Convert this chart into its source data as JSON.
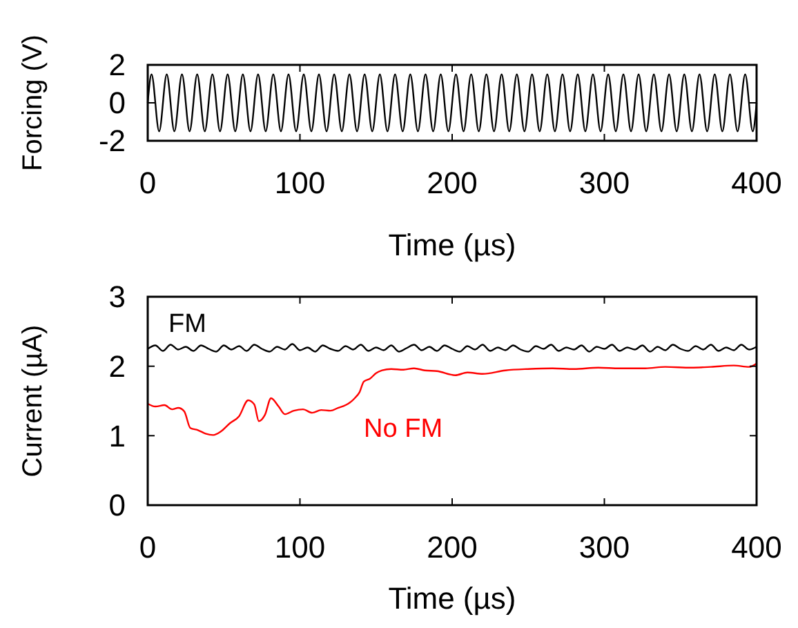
{
  "chart_data": [
    {
      "type": "line",
      "xlabel": "Time (µs)",
      "ylabel": "Forcing (V)",
      "xlim": [
        0,
        400
      ],
      "ylim": [
        -2,
        2
      ],
      "xticks": [
        0,
        100,
        200,
        300,
        400
      ],
      "yticks": [
        -2,
        0,
        2
      ],
      "grid": false,
      "series": [
        {
          "color": "#000000",
          "x": [
            0,
            2.5,
            7.5,
            12.5,
            17.5,
            22.5,
            27.5,
            32.5,
            37.5,
            42.5,
            47.5,
            52.5,
            57.5,
            62.5,
            67.5,
            72.5,
            77.5,
            82.5,
            87.5,
            92.5,
            97.5,
            102.5,
            107.5,
            112.5,
            117.5,
            122.5,
            127.5,
            132.5,
            137.5,
            142.5,
            147.5,
            152.5,
            157.5,
            162.5,
            167.5,
            172.5,
            177.5,
            182.5,
            187.5,
            192.5,
            197.5,
            202.5,
            207.5,
            212.5,
            217.5,
            222.5,
            227.5,
            232.5,
            237.5,
            242.5,
            247.5,
            252.5,
            257.5,
            262.5,
            267.5,
            272.5,
            277.5,
            282.5,
            287.5,
            292.5,
            297.5,
            302.5,
            307.5,
            312.5,
            317.5,
            322.5,
            327.5,
            332.5,
            337.5,
            342.5,
            347.5,
            352.5,
            357.5,
            362.5,
            367.5,
            372.5,
            377.5,
            382.5,
            387.5,
            392.5,
            397.5,
            400
          ],
          "values": [
            0,
            1.5,
            -1.5,
            1.5,
            -1.5,
            1.5,
            -1.5,
            1.5,
            -1.5,
            1.5,
            -1.5,
            1.5,
            -1.5,
            1.5,
            -1.5,
            1.5,
            -1.5,
            1.5,
            -1.5,
            1.5,
            -1.5,
            1.5,
            -1.5,
            1.5,
            -1.5,
            1.5,
            -1.5,
            1.5,
            -1.5,
            1.5,
            -1.5,
            1.5,
            -1.5,
            1.5,
            -1.5,
            1.5,
            -1.5,
            1.5,
            -1.5,
            1.5,
            -1.5,
            1.5,
            -1.5,
            1.5,
            -1.5,
            1.5,
            -1.5,
            1.5,
            -1.5,
            1.5,
            -1.5,
            1.5,
            -1.5,
            1.5,
            -1.5,
            1.5,
            -1.5,
            1.5,
            -1.5,
            1.5,
            -1.5,
            1.5,
            -1.5,
            1.5,
            -1.5,
            1.5,
            -1.5,
            1.5,
            -1.5,
            1.5,
            -1.5,
            1.5,
            -1.5,
            1.5,
            -1.5,
            1.5,
            -1.5,
            1.5,
            -1.5,
            1.5,
            -1.5,
            0
          ]
        }
      ]
    },
    {
      "type": "line",
      "xlabel": "Time (µs)",
      "ylabel": "Current (µA)",
      "xlim": [
        0,
        400
      ],
      "ylim": [
        0,
        3
      ],
      "xticks": [
        0,
        100,
        200,
        300,
        400
      ],
      "yticks": [
        0,
        1,
        2,
        3
      ],
      "grid": false,
      "series": [
        {
          "name": "FM",
          "color": "#000000",
          "x": [
            0,
            5,
            10,
            15,
            20,
            25,
            30,
            35,
            40,
            45,
            50,
            55,
            60,
            65,
            70,
            75,
            80,
            85,
            90,
            95,
            100,
            105,
            110,
            115,
            120,
            125,
            130,
            135,
            140,
            145,
            150,
            155,
            160,
            165,
            170,
            175,
            180,
            185,
            190,
            195,
            200,
            205,
            210,
            215,
            220,
            225,
            230,
            235,
            240,
            245,
            250,
            255,
            260,
            265,
            270,
            275,
            280,
            285,
            290,
            295,
            300,
            305,
            310,
            315,
            320,
            325,
            330,
            335,
            340,
            345,
            350,
            355,
            360,
            365,
            370,
            375,
            380,
            385,
            390,
            395,
            400
          ],
          "values": [
            2.25,
            2.3,
            2.22,
            2.31,
            2.24,
            2.28,
            2.22,
            2.3,
            2.25,
            2.21,
            2.3,
            2.24,
            2.29,
            2.22,
            2.31,
            2.25,
            2.21,
            2.28,
            2.24,
            2.32,
            2.23,
            2.27,
            2.21,
            2.3,
            2.25,
            2.22,
            2.29,
            2.24,
            2.31,
            2.22,
            2.27,
            2.23,
            2.3,
            2.21,
            2.26,
            2.31,
            2.23,
            2.28,
            2.22,
            2.3,
            2.25,
            2.21,
            2.29,
            2.24,
            2.31,
            2.22,
            2.27,
            2.23,
            2.3,
            2.24,
            2.21,
            2.29,
            2.25,
            2.31,
            2.22,
            2.27,
            2.24,
            2.3,
            2.21,
            2.28,
            2.25,
            2.31,
            2.22,
            2.27,
            2.24,
            2.3,
            2.21,
            2.28,
            2.23,
            2.31,
            2.25,
            2.22,
            2.29,
            2.24,
            2.31,
            2.22,
            2.27,
            2.23,
            2.31,
            2.24,
            2.28
          ]
        },
        {
          "name": "No FM",
          "color": "#ff0000",
          "x": [
            0,
            5,
            11,
            16,
            20,
            24,
            28,
            33,
            38,
            43,
            48,
            54,
            60,
            66,
            70,
            73,
            77,
            81,
            86,
            90,
            96,
            102,
            108,
            114,
            120,
            125,
            130,
            133,
            136,
            139,
            142,
            146,
            150,
            154,
            160,
            168,
            175,
            182,
            190,
            202,
            210,
            220,
            235,
            250,
            266,
            280,
            296,
            310,
            327,
            340,
            357,
            370,
            385,
            395,
            400
          ],
          "values": [
            1.46,
            1.42,
            1.44,
            1.38,
            1.4,
            1.35,
            1.11,
            1.08,
            1.03,
            1.01,
            1.06,
            1.18,
            1.28,
            1.51,
            1.45,
            1.21,
            1.3,
            1.54,
            1.42,
            1.31,
            1.36,
            1.38,
            1.33,
            1.37,
            1.36,
            1.4,
            1.44,
            1.48,
            1.54,
            1.62,
            1.78,
            1.82,
            1.9,
            1.94,
            1.96,
            1.95,
            1.97,
            1.94,
            1.93,
            1.87,
            1.91,
            1.89,
            1.94,
            1.96,
            1.97,
            1.96,
            1.98,
            1.97,
            1.97,
            1.99,
            1.98,
            1.99,
            2.01,
            1.99,
            2.04
          ]
        }
      ]
    }
  ]
}
